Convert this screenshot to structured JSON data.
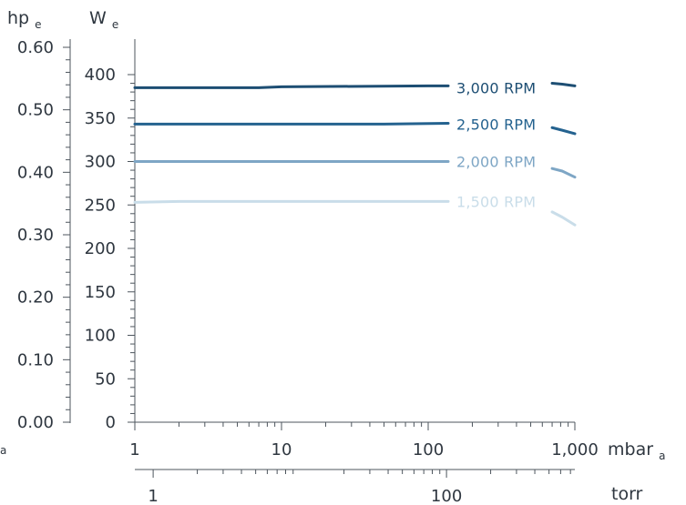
{
  "chart_data": {
    "type": "line",
    "left_axis": {
      "unit": "hp",
      "unit_subscript": "e",
      "ticks": [
        "0.60",
        "0.50",
        "0.40",
        "0.30",
        "0.20",
        "0.10",
        "0.00"
      ],
      "range": [
        0,
        0.6
      ]
    },
    "primary_axis": {
      "unit": "W",
      "unit_subscript": "e",
      "ticks": [
        "400",
        "350",
        "300",
        "250",
        "200",
        "150",
        "100",
        "50",
        "0"
      ],
      "range": [
        0,
        400
      ]
    },
    "x_axis_mbar": {
      "unit": "mbar",
      "unit_subscript": "a",
      "scale": "log",
      "range": [
        1,
        1000
      ],
      "ticks": [
        "1",
        "10",
        "100",
        "1,000"
      ]
    },
    "x_axis_torr": {
      "unit": "torr",
      "scale": "log",
      "ticks": [
        "1",
        "100"
      ]
    },
    "left_edge_subscript": "a",
    "colors": {
      "axis": "#4d555d",
      "text": "#2f3740",
      "s3000": "#1d4e73",
      "s2500": "#24628f",
      "s2000": "#7ea6c5",
      "s1500": "#c9dde9"
    },
    "series": [
      {
        "name": "3,000 RPM",
        "color": "#1d4e73",
        "points": [
          [
            1,
            385
          ],
          [
            7,
            385
          ],
          [
            10,
            386
          ],
          [
            100,
            387
          ],
          [
            137,
            387
          ]
        ],
        "tail": [
          [
            700,
            390
          ],
          [
            820,
            389
          ],
          [
            1000,
            387
          ]
        ]
      },
      {
        "name": "2,500 RPM",
        "color": "#24628f",
        "points": [
          [
            1,
            343
          ],
          [
            10,
            343
          ],
          [
            50,
            343
          ],
          [
            137,
            344
          ]
        ],
        "tail": [
          [
            700,
            339
          ],
          [
            820,
            336
          ],
          [
            1000,
            332
          ]
        ]
      },
      {
        "name": "2,000 RPM",
        "color": "#7ea6c5",
        "points": [
          [
            1,
            300
          ],
          [
            10,
            300
          ],
          [
            100,
            300
          ],
          [
            137,
            300
          ]
        ],
        "tail": [
          [
            700,
            292
          ],
          [
            820,
            289
          ],
          [
            1000,
            282
          ]
        ]
      },
      {
        "name": "1,500 RPM",
        "color": "#c9dde9",
        "points": [
          [
            1,
            253
          ],
          [
            2,
            254
          ],
          [
            10,
            254
          ],
          [
            100,
            254
          ],
          [
            137,
            254
          ]
        ],
        "tail": [
          [
            700,
            242
          ],
          [
            820,
            236
          ],
          [
            1000,
            227
          ]
        ]
      }
    ]
  }
}
